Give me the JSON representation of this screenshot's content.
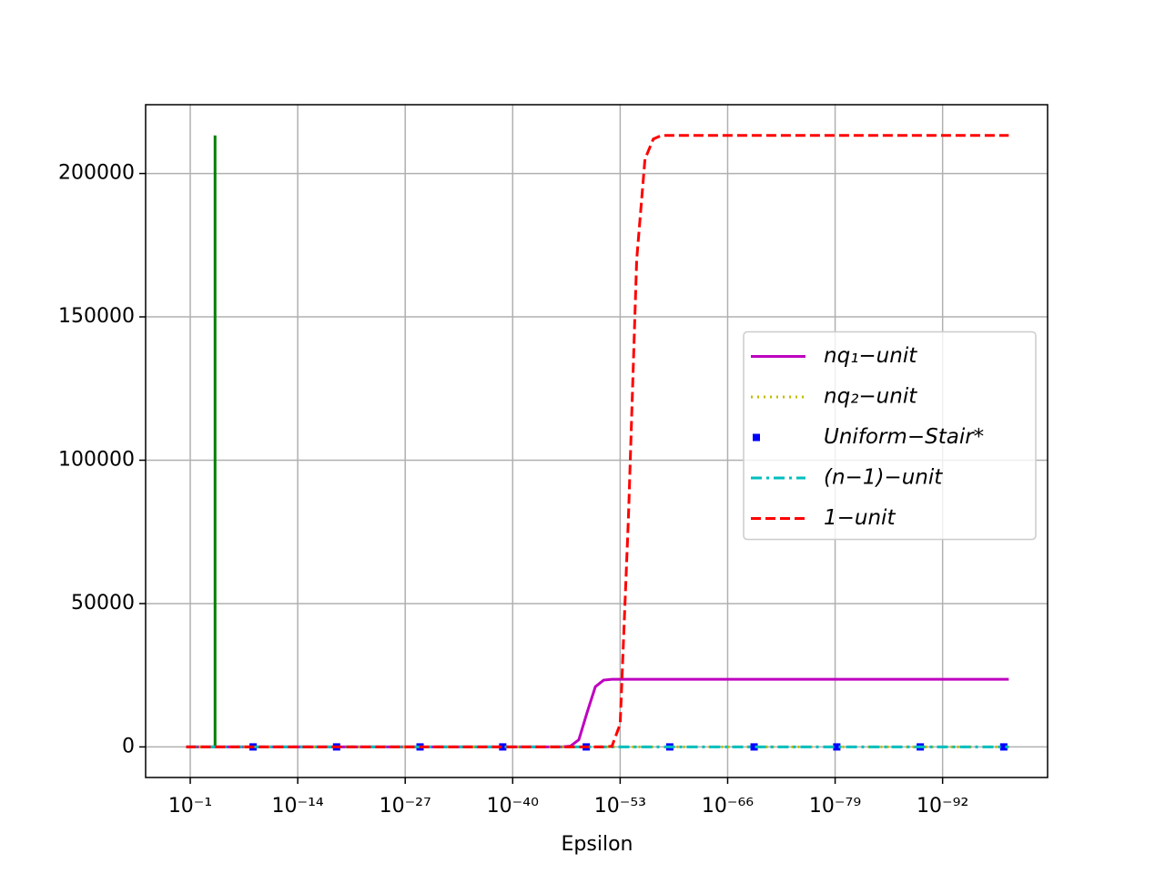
{
  "chart_data": {
    "type": "line",
    "x_label": "Epsilon",
    "x_scale": "log",
    "xlim": [
      25000,
      2e-105
    ],
    "xticks": [
      {
        "value": 0.1,
        "label": "10⁻¹"
      },
      {
        "value": 1e-14,
        "label": "10⁻¹⁴"
      },
      {
        "value": 1e-27,
        "label": "10⁻²⁷"
      },
      {
        "value": 1e-40,
        "label": "10⁻⁴⁰"
      },
      {
        "value": 1e-53,
        "label": "10⁻⁵³"
      },
      {
        "value": 1e-66,
        "label": "10⁻⁶⁶"
      },
      {
        "value": 1e-79,
        "label": "10⁻⁷⁹"
      },
      {
        "value": 1e-92,
        "label": "10⁻⁹²"
      }
    ],
    "ylim": [
      -10667,
      224000
    ],
    "yticks": [
      0,
      50000,
      100000,
      150000,
      200000
    ],
    "grid": true,
    "legend": "center right",
    "series": [
      {
        "color": "#008000",
        "style": "solid",
        "x": [
          0.0001,
          0.0001
        ],
        "values": [
          0,
          213300
        ]
      },
      {
        "name": "nq₁−unit",
        "color": "#bf00bf",
        "style": "solid",
        "x": [
          0.316,
          1e-10,
          1e-20,
          1e-30,
          1e-40,
          1e-44,
          1e-45,
          1e-46,
          1e-47,
          1e-48,
          1e-49,
          1e-50,
          1e-51,
          1e-52,
          1e-53,
          1e-54,
          1e-55,
          1e-56,
          1e-57,
          1e-58,
          1e-60,
          1e-70,
          1e-80,
          1e-90,
          1e-100
        ],
        "values": [
          0,
          0,
          0,
          0,
          0,
          0,
          0,
          0,
          300,
          2500,
          12000,
          21000,
          23300,
          23600,
          23600,
          23600,
          23600,
          23600,
          23600,
          23600,
          23600,
          23600,
          23600,
          23600,
          23600
        ]
      },
      {
        "name": "nq₂−unit",
        "color": "#bfbf00",
        "style": "dotted",
        "x": [
          0.316,
          1e-100
        ],
        "values": [
          0,
          0
        ]
      },
      {
        "name": "Uniform−Stair*",
        "color": "#0000ff",
        "style": "marker",
        "x": [
          2.5e-09,
          2e-19,
          1.6e-29,
          1.6e-39,
          1.26e-49,
          1e-59,
          6.3e-70,
          6.3e-80,
          5e-90,
          4e-100
        ],
        "values": [
          0,
          0,
          0,
          0,
          0,
          0,
          0,
          0,
          0,
          0
        ]
      },
      {
        "name": "(n−1)−unit",
        "color": "#00bfbf",
        "style": "dashdot",
        "x": [
          0.316,
          1e-100
        ],
        "values": [
          0,
          0
        ]
      },
      {
        "name": "1−unit",
        "color": "#ff0000",
        "style": "dashed",
        "x": [
          0.316,
          1e-10,
          1e-20,
          1e-30,
          1e-40,
          1e-50,
          1e-51,
          1e-52,
          1e-53,
          1e-54,
          1e-55,
          1e-56,
          1e-57,
          1e-58,
          1e-60,
          1e-70,
          1e-80,
          1e-90,
          1e-100
        ],
        "values": [
          0,
          0,
          0,
          0,
          0,
          0,
          0,
          200,
          8000,
          80000,
          170000,
          205000,
          212000,
          213300,
          213300,
          213300,
          213300,
          213300,
          213300
        ]
      }
    ]
  }
}
